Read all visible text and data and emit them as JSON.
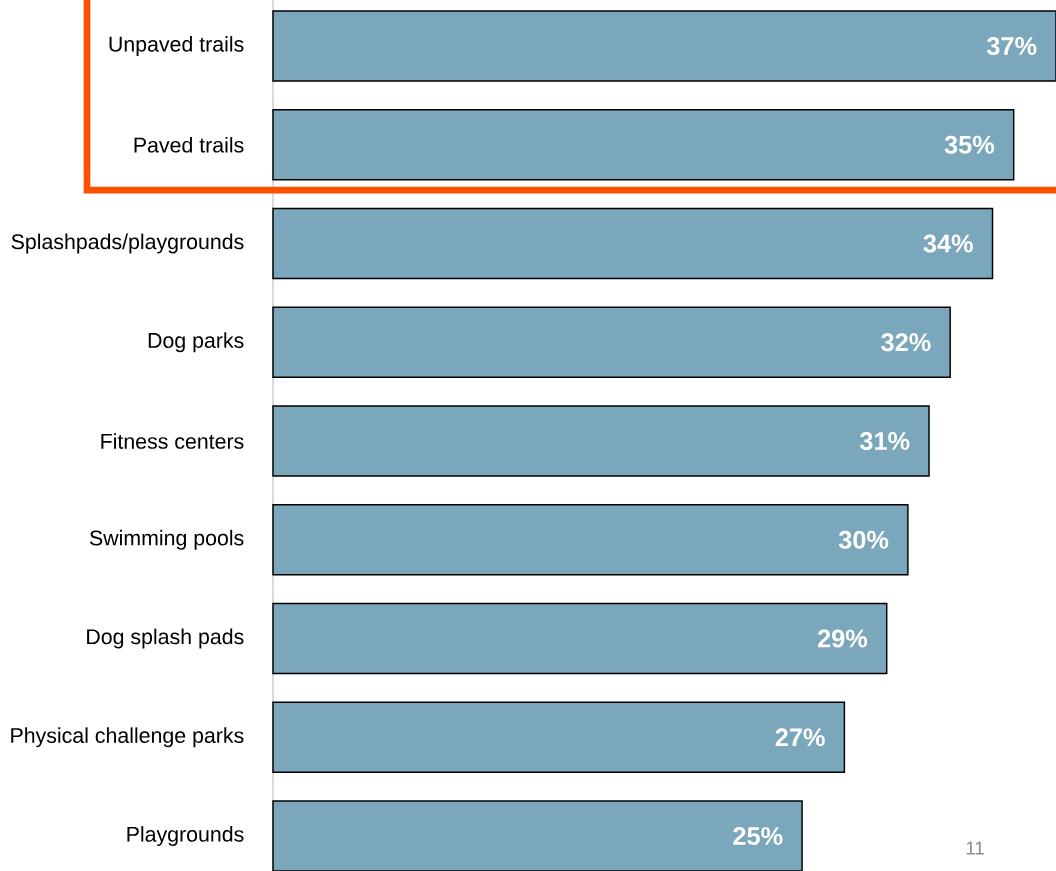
{
  "chart_data": {
    "type": "bar",
    "orientation": "horizontal",
    "categories": [
      "Unpaved trails",
      "Paved trails",
      "Splashpads/playgrounds",
      "Dog parks",
      "Fitness centers",
      "Swimming pools",
      "Dog splash pads",
      "Physical challenge parks",
      "Playgrounds"
    ],
    "values": [
      37,
      35,
      34,
      32,
      31,
      30,
      29,
      27,
      25
    ],
    "value_labels": [
      "37%",
      "35%",
      "34%",
      "32%",
      "31%",
      "30%",
      "29%",
      "27%",
      "25%"
    ],
    "color": "#7ba7bc",
    "xlim": [
      0,
      37
    ],
    "tick_labels": "y",
    "annotations": [
      "11"
    ]
  }
}
